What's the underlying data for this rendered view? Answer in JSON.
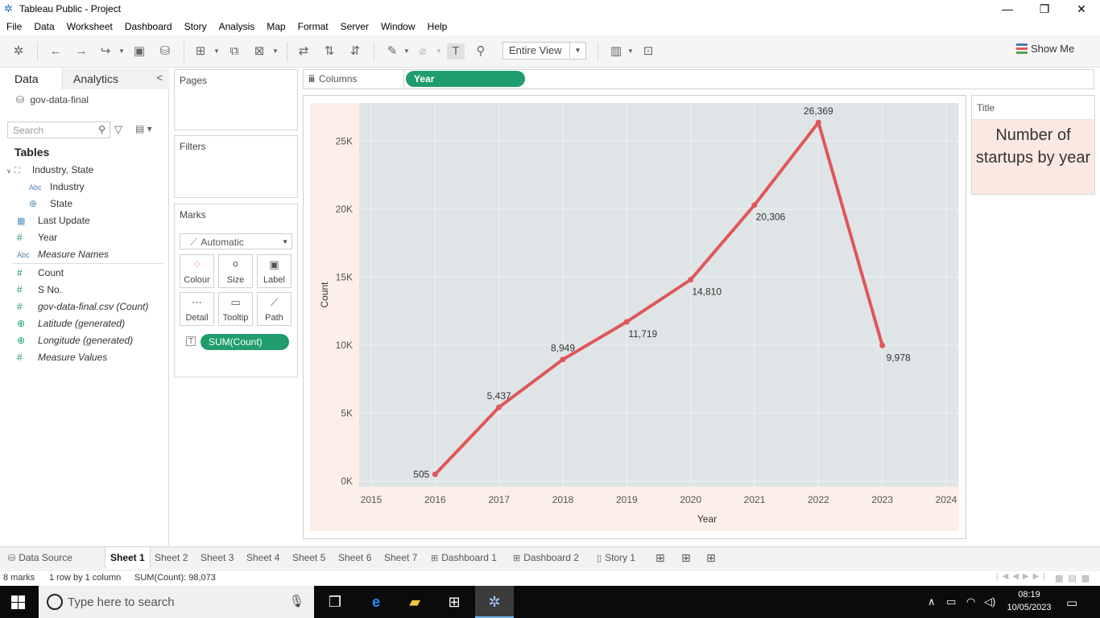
{
  "window": {
    "title": "Tableau Public - Project",
    "controls": {
      "minimize": "—",
      "restore": "❐",
      "close": "✕"
    }
  },
  "menu": [
    "File",
    "Data",
    "Worksheet",
    "Dashboard",
    "Story",
    "Analysis",
    "Map",
    "Format",
    "Server",
    "Window",
    "Help"
  ],
  "toolbar": {
    "fit_value": "Entire View",
    "show_me_label": "Show Me"
  },
  "data_pane": {
    "tab_data": "Data",
    "tab_analytics": "Analytics",
    "datasource": "gov-data-final",
    "search_placeholder": "Search",
    "tables_heading": "Tables",
    "fields": [
      {
        "label": "Industry, State",
        "icon": "hierarchy-icon",
        "italic": false
      },
      {
        "label": "Industry",
        "icon": "Abc",
        "italic": false
      },
      {
        "label": "State",
        "icon": "globe-icon",
        "italic": false
      },
      {
        "label": "Last Update",
        "icon": "calendar-icon",
        "italic": false
      },
      {
        "label": "Year",
        "icon": "#",
        "italic": false
      },
      {
        "label": "Measure Names",
        "icon": "Abc",
        "italic": true
      },
      {
        "label": "Count",
        "icon": "#",
        "italic": false
      },
      {
        "label": "S No.",
        "icon": "#",
        "italic": false
      },
      {
        "label": "gov-data-final.csv (Count)",
        "icon": "#",
        "italic": true
      },
      {
        "label": "Latitude (generated)",
        "icon": "globe-icon",
        "italic": true
      },
      {
        "label": "Longitude (generated)",
        "icon": "globe-icon",
        "italic": true
      },
      {
        "label": "Measure Values",
        "icon": "#",
        "italic": true
      }
    ]
  },
  "shelves": {
    "pages_label": "Pages",
    "filters_label": "Filters",
    "marks_label": "Marks",
    "mark_type": "Automatic",
    "mark_buttons": [
      "Colour",
      "Size",
      "Label",
      "Detail",
      "Tooltip",
      "Path"
    ],
    "marks_pill": "SUM(Count)",
    "columns_label": "Columns",
    "columns_pill": "Year"
  },
  "title_card": {
    "header": "Title",
    "text": "Number of startups by year"
  },
  "chart_data": {
    "type": "line",
    "x": [
      2016,
      2017,
      2018,
      2019,
      2020,
      2021,
      2022,
      2023
    ],
    "values": [
      505,
      5437,
      8949,
      11719,
      14810,
      20306,
      26369,
      9978
    ],
    "data_labels": [
      "505",
      "5,437",
      "8,949",
      "11,719",
      "14,810",
      "20,306",
      "26,369",
      "9,978"
    ],
    "xlabel": "Year",
    "ylabel": "Count",
    "x_ticks": [
      "2015",
      "2016",
      "2017",
      "2018",
      "2019",
      "2020",
      "2021",
      "2022",
      "2023",
      "2024"
    ],
    "y_ticks": [
      "0K",
      "5K",
      "10K",
      "15K",
      "20K",
      "25K"
    ],
    "xlim": [
      2015,
      2024
    ],
    "ylim": [
      0,
      25000
    ],
    "line_color": "#e05759",
    "grid": true
  },
  "sheet_tabs": [
    "Data Source",
    "Sheet 1",
    "Sheet 2",
    "Sheet 3",
    "Sheet 4",
    "Sheet 5",
    "Sheet 6",
    "Sheet 7",
    "Dashboard 1",
    "Dashboard 2",
    "Story 1"
  ],
  "status": {
    "marks": "8 marks",
    "rows_cols": "1 row by 1 column",
    "sum": "SUM(Count): 98,073"
  },
  "taskbar": {
    "search_placeholder": "Type here to search",
    "time": "08:19",
    "date": "10/05/2023"
  }
}
